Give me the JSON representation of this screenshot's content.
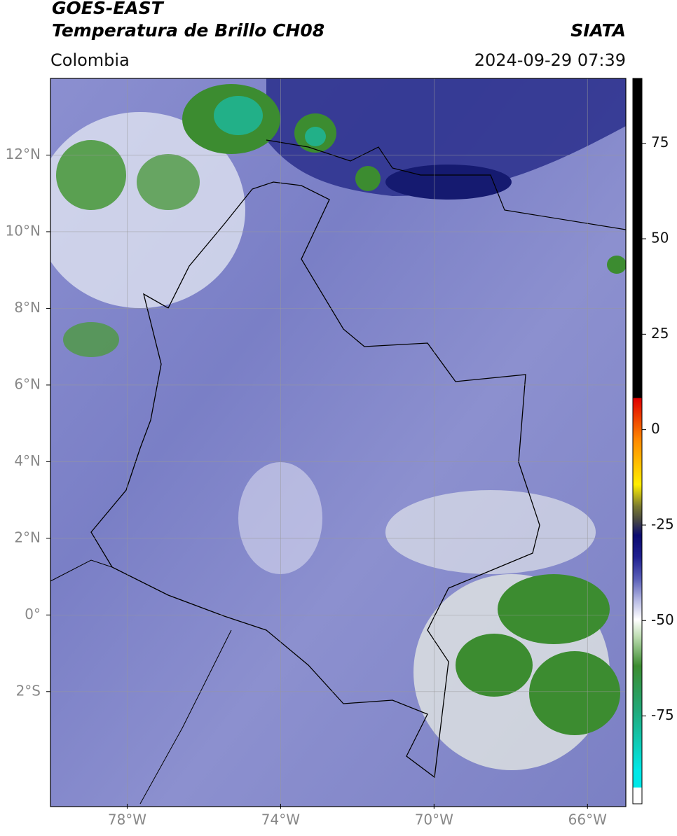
{
  "header": {
    "title": "GOES-EAST",
    "subtitle": "Temperatura de Brillo CH08",
    "brand": "SIATA",
    "region": "Colombia",
    "timestamp": "2024-09-29 07:39"
  },
  "map": {
    "xlim": [
      -80,
      -65
    ],
    "ylim": [
      -5,
      14
    ],
    "xticks": [
      {
        "value": -78,
        "label": "78°W"
      },
      {
        "value": -74,
        "label": "74°W"
      },
      {
        "value": -70,
        "label": "70°W"
      },
      {
        "value": -66,
        "label": "66°W"
      }
    ],
    "yticks": [
      {
        "value": 12,
        "label": "12°N"
      },
      {
        "value": 10,
        "label": "10°N"
      },
      {
        "value": 8,
        "label": "8°N"
      },
      {
        "value": 6,
        "label": "6°N"
      },
      {
        "value": 4,
        "label": "4°N"
      },
      {
        "value": 2,
        "label": "2°N"
      },
      {
        "value": 0,
        "label": "0°"
      },
      {
        "value": -2,
        "label": "2°S"
      }
    ],
    "grid": true
  },
  "colorbar": {
    "lim": [
      -98,
      92
    ],
    "ticks": [
      75,
      50,
      25,
      0,
      -25,
      -50,
      -75
    ]
  }
}
